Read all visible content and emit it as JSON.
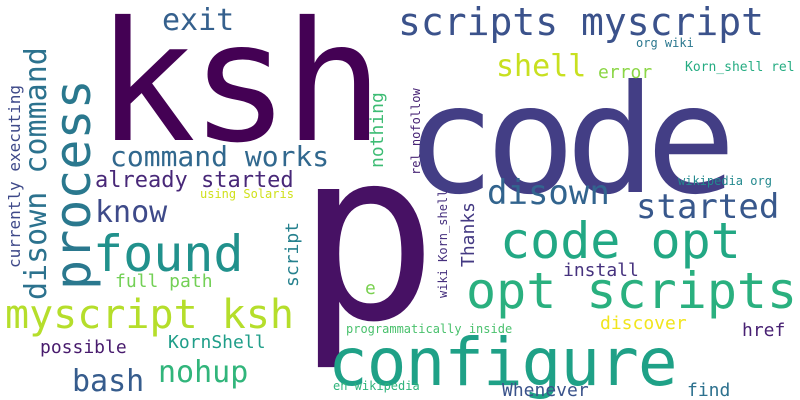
{
  "words": [
    {
      "text": "ksh",
      "color": "#440154"
    },
    {
      "text": "code",
      "color": "#433e85"
    },
    {
      "text": "p",
      "color": "#471164"
    },
    {
      "text": "configure",
      "color": "#1fa187"
    },
    {
      "text": "process",
      "color": "#2a788e"
    },
    {
      "text": "found",
      "color": "#21918c"
    },
    {
      "text": "code opt",
      "color": "#22a884"
    },
    {
      "text": "opt scripts",
      "color": "#2ab07f"
    },
    {
      "text": "scripts myscript",
      "color": "#3b528b"
    },
    {
      "text": "myscript ksh",
      "color": "#b5de2b"
    },
    {
      "text": "disown command",
      "color": "#2c728e"
    },
    {
      "text": "command works",
      "color": "#31688e"
    },
    {
      "text": "disown",
      "color": "#32648e"
    },
    {
      "text": "started",
      "color": "#38588c"
    },
    {
      "text": "exit",
      "color": "#35608d"
    },
    {
      "text": "shell",
      "color": "#c8e020"
    },
    {
      "text": "know",
      "color": "#3e4a89"
    },
    {
      "text": "already started",
      "color": "#482878"
    },
    {
      "text": "nohup",
      "color": "#31b57b"
    },
    {
      "text": "bash",
      "color": "#365c8d"
    },
    {
      "text": "currently executing",
      "color": "#3e4989"
    },
    {
      "text": "full path",
      "color": "#73d056"
    },
    {
      "text": "script",
      "color": "#26818e"
    },
    {
      "text": "nothing",
      "color": "#3dbc74"
    },
    {
      "text": "install",
      "color": "#46327e"
    },
    {
      "text": "KornShell",
      "color": "#1f9e89"
    },
    {
      "text": "possible",
      "color": "#481b6d"
    },
    {
      "text": "href",
      "color": "#482173"
    },
    {
      "text": "discover",
      "color": "#f1e51d"
    },
    {
      "text": "Whenever",
      "color": "#3a538b"
    },
    {
      "text": "find",
      "color": "#2d718e"
    },
    {
      "text": "Thanks",
      "color": "#443a83"
    },
    {
      "text": "error",
      "color": "#8bd646"
    },
    {
      "text": "Korn_shell rel",
      "color": "#25ac82"
    },
    {
      "text": "org wiki",
      "color": "#2a778e"
    },
    {
      "text": "wikipedia org",
      "color": "#23898e"
    },
    {
      "text": "using Solaris",
      "color": "#d0e11c"
    },
    {
      "text": "rel nofollow",
      "color": "#482475"
    },
    {
      "text": "wiki Korn_shell",
      "color": "#46307e"
    },
    {
      "text": "e",
      "color": "#7ad151"
    },
    {
      "text": "programmatically inside",
      "color": "#4ac16d"
    },
    {
      "text": "en wikipedia",
      "color": "#2fb47c"
    }
  ]
}
